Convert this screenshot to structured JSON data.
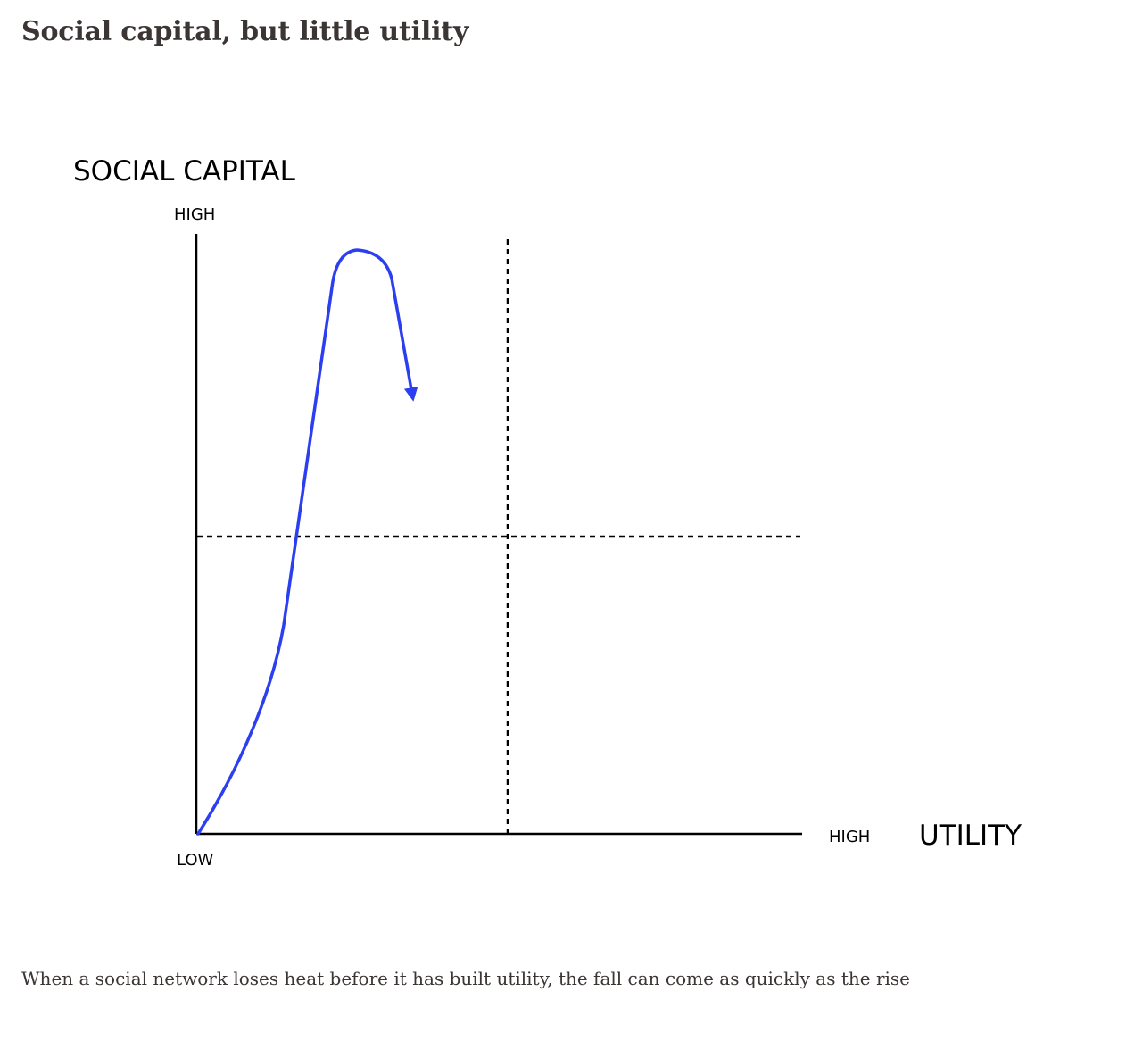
{
  "article": {
    "heading": "Social capital, but little utility",
    "caption": "When a social network loses heat before it has built utility, the fall can come as quickly as the rise"
  },
  "diagram": {
    "y_axis_title": "SOCIAL CAPITAL",
    "y_axis_high": "HIGH",
    "origin_label": "LOW",
    "x_axis_high": "HIGH",
    "x_axis_title": "UTILITY",
    "axis_color": "#000000",
    "curve_color": "#2b3ff0",
    "curve_shape": "rise-peak-fall-arrow",
    "divider_style": "dashed quadrant lines"
  }
}
